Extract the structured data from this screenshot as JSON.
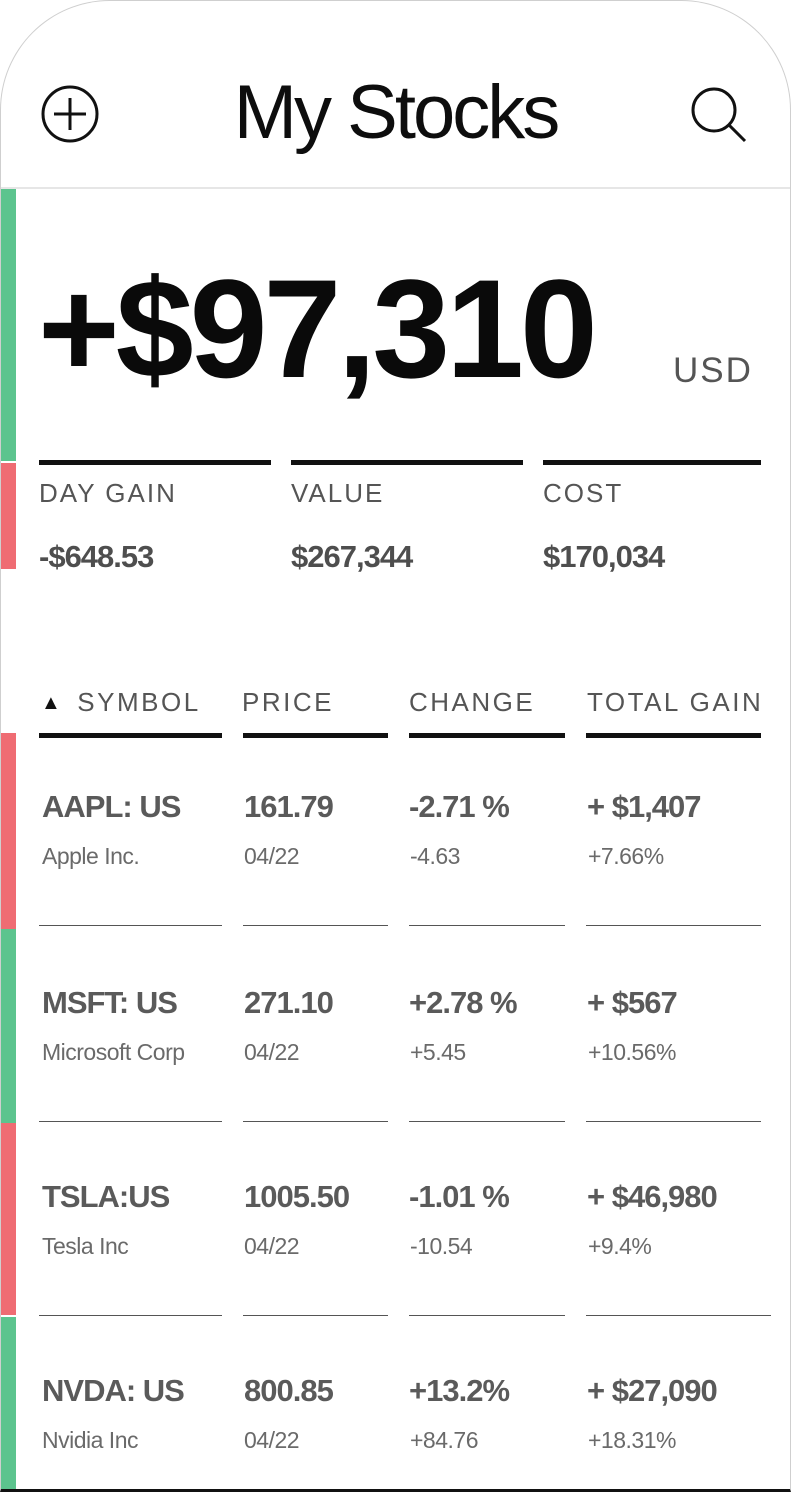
{
  "header": {
    "title": "My Stocks",
    "add_icon": "plus-circle-icon",
    "search_icon": "search-icon"
  },
  "portfolio": {
    "total_gain": "+$97,310",
    "currency": "USD"
  },
  "summary": [
    {
      "label": "DAY GAIN",
      "value": "-$648.53"
    },
    {
      "label": "VALUE",
      "value": "$267,344"
    },
    {
      "label": "COST",
      "value": "$170,034"
    }
  ],
  "table": {
    "sort_icon": "triangle-up-icon",
    "headers": [
      "SYMBOL",
      "PRICE",
      "CHANGE",
      "TOTAL GAIN"
    ],
    "rows": [
      {
        "symbol": "AAPL: US",
        "name": "Apple Inc.",
        "price": "161.79",
        "date": "04/22",
        "change_pct": "-2.71 %",
        "change": "-4.63",
        "total_gain": "+ $1,407",
        "total_gain_pct": "+7.66%",
        "status": "down"
      },
      {
        "symbol": "MSFT: US",
        "name": "Microsoft Corp",
        "price": "271.10",
        "date": "04/22",
        "change_pct": "+2.78 %",
        "change": "+5.45",
        "total_gain": "+ $567",
        "total_gain_pct": "+10.56%",
        "status": "up"
      },
      {
        "symbol": "TSLA:US",
        "name": "Tesla Inc",
        "price": "1005.50",
        "date": "04/22",
        "change_pct": "-1.01 %",
        "change": "-10.54",
        "total_gain": "+ $46,980",
        "total_gain_pct": "+9.4%",
        "status": "down"
      },
      {
        "symbol": "NVDA: US",
        "name": "Nvidia Inc",
        "price": "800.85",
        "date": "04/22",
        "change_pct": "+13.2%",
        "change": "+84.76",
        "total_gain": "+ $27,090",
        "total_gain_pct": "+18.31%",
        "status": "up"
      }
    ]
  },
  "colors": {
    "up": "#5cc48e",
    "down": "#ef6c73"
  }
}
